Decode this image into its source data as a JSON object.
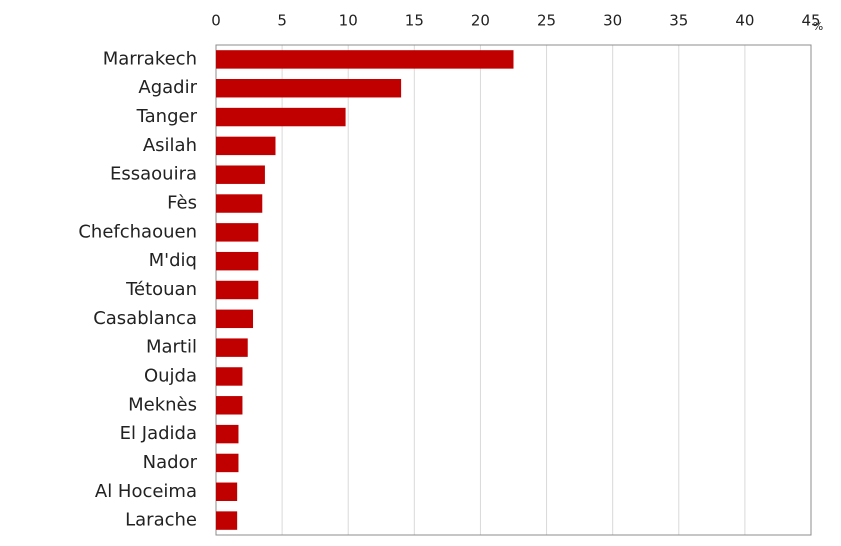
{
  "chart_data": {
    "type": "hbar",
    "categories": [
      "Marrakech",
      "Agadir",
      "Tanger",
      "Asilah",
      "Essaouira",
      "Fès",
      "Chefchaouen",
      "M'diq",
      "Tétouan",
      "Casablanca",
      "Martil",
      "Oujda",
      "Meknès",
      "El Jadida",
      "Nador",
      "Al Hoceima",
      "Larache"
    ],
    "values": [
      22.5,
      14,
      9.8,
      4.5,
      3.7,
      3.5,
      3.2,
      3.2,
      3.2,
      2.8,
      2.4,
      2.0,
      2.0,
      1.7,
      1.7,
      1.6,
      1.6
    ],
    "color": "#c00000",
    "xlabel": "%",
    "xlim": [
      0,
      45
    ],
    "xticks": [
      0,
      5,
      10,
      15,
      20,
      25,
      30,
      35,
      40,
      45
    ],
    "grid": true
  }
}
